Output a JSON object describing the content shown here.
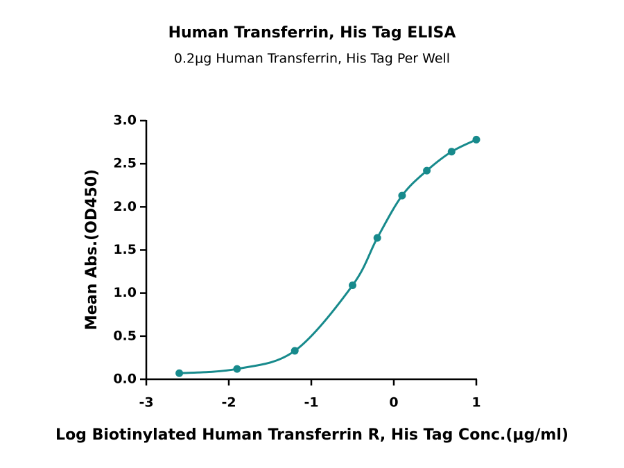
{
  "chart_data": {
    "type": "line",
    "title": "Human Transferrin, His Tag ELISA",
    "subtitle": "0.2μg Human Transferrin, His Tag Per Well",
    "x_label": "Log Biotinylated Human Transferrin R, His Tag Conc.(μg/ml)",
    "y_label": "Mean Abs.(OD450)",
    "series": [
      {
        "name": "Human Transferrin, His Tag",
        "color": "#178a8c",
        "x": [
          -2.6,
          -1.9,
          -1.2,
          -0.5,
          -0.2,
          0.1,
          0.4,
          0.7,
          1.0
        ],
        "values": [
          0.07,
          0.12,
          0.33,
          1.09,
          1.64,
          2.13,
          2.42,
          2.64,
          2.78
        ]
      }
    ],
    "xlim": [
      -3,
      1
    ],
    "xticks": [
      -3,
      -2,
      -1,
      0,
      1
    ],
    "ylim": [
      0,
      3
    ],
    "yticks": [
      {
        "value": 0,
        "label": "0.0"
      },
      0.5,
      {
        "value": 1,
        "label": "1.0"
      },
      1.5,
      {
        "value": 2,
        "label": "2.0"
      },
      2.5,
      {
        "value": 3,
        "label": "3.0"
      }
    ]
  }
}
